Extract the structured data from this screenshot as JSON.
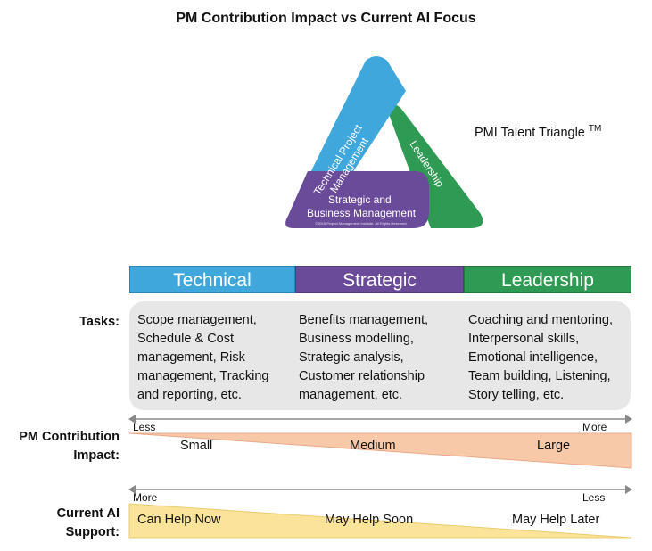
{
  "title": "PM Contribution Impact vs Current AI Focus",
  "triangle": {
    "side_left": [
      "Technical Project",
      "Management"
    ],
    "side_right": "Leadership",
    "base": [
      "Strategic and",
      "Business Management"
    ],
    "copyright": "©2015 Project Management Institute. All Rights Reserved.",
    "label": "PMI Talent Triangle",
    "tm": "TM"
  },
  "columns": [
    "Technical",
    "Strategic",
    "Leadership"
  ],
  "tasks": {
    "label": "Tasks:",
    "technical": "Scope management,\nSchedule & Cost\nmanagement, Risk\nmanagement, Tracking\nand reporting, etc.",
    "strategic": "Benefits management,\nBusiness modelling,\nStrategic analysis,\nCustomer relationship\nmanagement, etc.",
    "leadership": "Coaching and mentoring,\nInterpersonal skills,\nEmotional intelligence,\nTeam building, Listening,\nStory telling, etc."
  },
  "impact": {
    "label": "PM Contribution\nImpact:",
    "less": "Less",
    "more": "More",
    "levels": [
      "Small",
      "Medium",
      "Large"
    ]
  },
  "ai": {
    "label": "Current AI\nSupport:",
    "more": "More",
    "less": "Less",
    "levels": [
      "Can Help Now",
      "May Help Soon",
      "May Help Later"
    ]
  },
  "colors": {
    "technical": "#3fa7dc",
    "strategic": "#6a4b9a",
    "leadership": "#2f9a53",
    "impact_wedge": "#f8c9a8",
    "ai_wedge": "#fbe39a",
    "tasks_bg": "#e7e7e7"
  }
}
